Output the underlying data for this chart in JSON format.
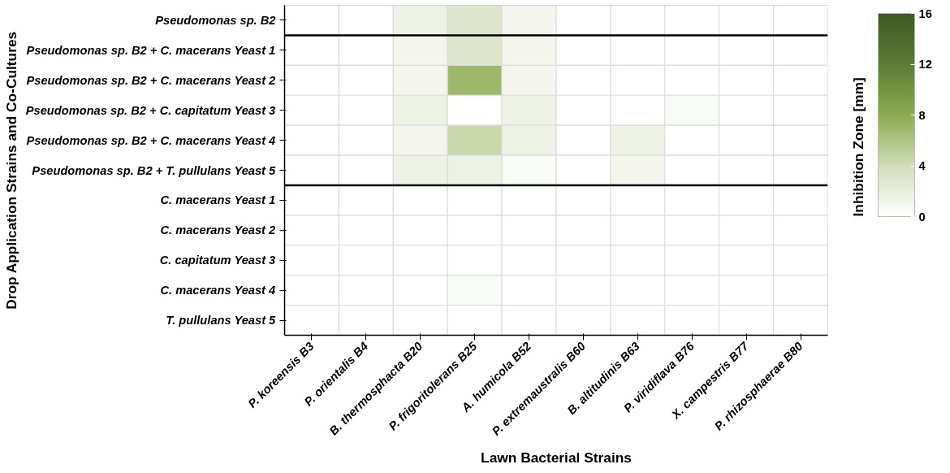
{
  "chart_data": {
    "type": "heatmap",
    "xlabel": "Lawn Bacterial Strains",
    "ylabel": "Drop Application Strains and Co-Cultures",
    "clabel": "Inhibition Zone [mm]",
    "categories": [
      "P. koreensis B3",
      "P. orientalis B4",
      "B. thermosphacta B20",
      "P. frigoritolerans B25",
      "A. humicola B52",
      "P. extremaustralis B60",
      "B. altitudinis B63",
      "P. viridiflava B76",
      "X. campestris B77",
      "P. rhizosphaerae B80"
    ],
    "y_categories": [
      "Pseudomonas sp. B2",
      "Pseudomonas sp. B2 + C. macerans Yeast 1",
      "Pseudomonas sp. B2 + C. macerans Yeast 2",
      "Pseudomonas sp. B2 + C. capitatum Yeast 3",
      "Pseudomonas sp. B2 + C. macerans Yeast 4",
      "Pseudomonas sp. B2 + T. pullulans Yeast 5",
      "C. macerans Yeast 1",
      "C. macerans Yeast 2",
      "C. capitatum Yeast 3",
      "C. macerans Yeast 4",
      "T. pullulans Yeast 5"
    ],
    "cells": [
      [
        0,
        0,
        1.5,
        3,
        1,
        0,
        0,
        0,
        0,
        0
      ],
      [
        0,
        0,
        1,
        3,
        1,
        0,
        0,
        0,
        0,
        0
      ],
      [
        0,
        0,
        1,
        7,
        1,
        0,
        0,
        0,
        0,
        0
      ],
      [
        0,
        0,
        1.5,
        0,
        1.5,
        0,
        0,
        0.5,
        0,
        0
      ],
      [
        0,
        0,
        1,
        4.5,
        1.5,
        0,
        1.5,
        0,
        0,
        0
      ],
      [
        0,
        0,
        1.5,
        1.5,
        0.5,
        0,
        1,
        0,
        0,
        0
      ],
      [
        0,
        0,
        0,
        0,
        0,
        0,
        0,
        0,
        0,
        0
      ],
      [
        0,
        0,
        0,
        0,
        0,
        0,
        0,
        0,
        0,
        0
      ],
      [
        0,
        0,
        0,
        0,
        0,
        0,
        0,
        0,
        0,
        0
      ],
      [
        0,
        0,
        0,
        0.5,
        0,
        0,
        0,
        0,
        0,
        0
      ],
      [
        0,
        0,
        0,
        0,
        0,
        0,
        0,
        0,
        0,
        0
      ]
    ],
    "clim": [
      0,
      16
    ],
    "cticks": [
      0,
      4,
      8,
      12,
      16
    ]
  }
}
